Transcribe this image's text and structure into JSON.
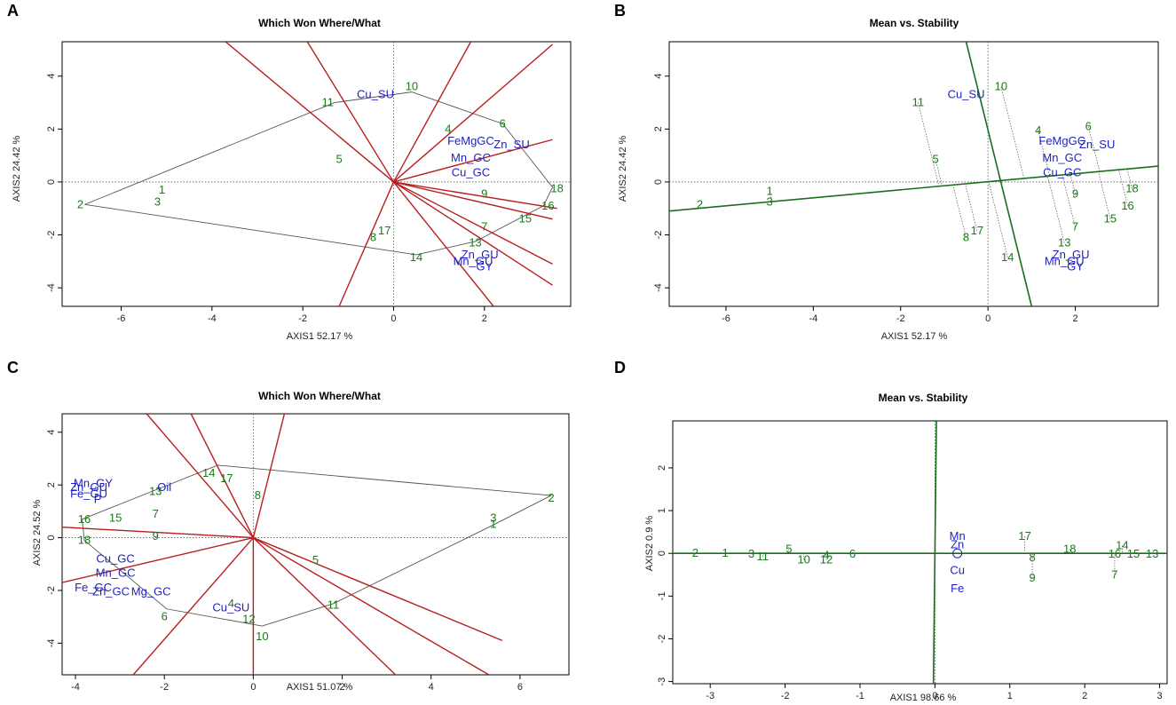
{
  "figure": {
    "panels": [
      "A",
      "B",
      "C",
      "D"
    ]
  },
  "chart_data": [
    {
      "panel": "A",
      "type": "scatter",
      "plot_type": "which-won-where",
      "title": "Which Won Where/What",
      "xlabel": "AXIS1 52.17 %",
      "ylabel": "AXIS2 24.42 %",
      "xlim": [
        -7.3,
        3.9
      ],
      "ylim": [
        -4.7,
        5.3
      ],
      "xticks": [
        -6,
        -4,
        -2,
        0,
        2
      ],
      "yticks": [
        -4,
        -2,
        0,
        2,
        4
      ],
      "genotypes": [
        {
          "label": "1",
          "x": -5.1,
          "y": -0.3
        },
        {
          "label": "2",
          "x": -6.9,
          "y": -0.85
        },
        {
          "label": "3",
          "x": -5.2,
          "y": -0.75
        },
        {
          "label": "4",
          "x": 1.2,
          "y": 2.0
        },
        {
          "label": "5",
          "x": -1.2,
          "y": 0.85
        },
        {
          "label": "6",
          "x": 2.4,
          "y": 2.2
        },
        {
          "label": "7",
          "x": 2.0,
          "y": -1.7
        },
        {
          "label": "8",
          "x": -0.45,
          "y": -2.1
        },
        {
          "label": "9",
          "x": 2.0,
          "y": -0.45
        },
        {
          "label": "10",
          "x": 0.4,
          "y": 3.6
        },
        {
          "label": "11",
          "x": -1.45,
          "y": 3.0
        },
        {
          "label": "13",
          "x": 1.8,
          "y": -2.3
        },
        {
          "label": "14",
          "x": 0.5,
          "y": -2.85
        },
        {
          "label": "15",
          "x": 2.9,
          "y": -1.4
        },
        {
          "label": "16",
          "x": 3.4,
          "y": -0.9
        },
        {
          "label": "17",
          "x": -0.2,
          "y": -1.85
        },
        {
          "label": "18",
          "x": 3.6,
          "y": -0.25
        }
      ],
      "traits": [
        {
          "label": "Cu_SU",
          "x": -0.4,
          "y": 3.3
        },
        {
          "label": "FeMgGC",
          "x": 1.7,
          "y": 1.55
        },
        {
          "label": "Zn_SU",
          "x": 2.6,
          "y": 1.4
        },
        {
          "label": "Mn_GC",
          "x": 1.7,
          "y": 0.9
        },
        {
          "label": "Cu_GC",
          "x": 1.7,
          "y": 0.35
        },
        {
          "label": "Zn_GU",
          "x": 1.9,
          "y": -2.75
        },
        {
          "label": "Mn_GU",
          "x": 1.75,
          "y": -3.0
        },
        {
          "label": "GY",
          "x": 2.0,
          "y": -3.2
        }
      ],
      "hull": [
        [
          "2",
          -6.8,
          -0.85
        ],
        [
          "11",
          -1.3,
          3.0
        ],
        [
          "10",
          0.4,
          3.4
        ],
        [
          "6",
          2.4,
          2.2
        ],
        [
          "18",
          3.5,
          -0.2
        ],
        [
          "16",
          3.3,
          -0.9
        ],
        [
          "13",
          1.8,
          -2.25
        ],
        [
          "14",
          0.5,
          -2.75
        ],
        [
          "2",
          -6.8,
          -0.85
        ]
      ],
      "sectors": [
        [
          -1.9,
          5.3
        ],
        [
          -1.2,
          -4.7
        ],
        [
          2.2,
          -4.7
        ],
        [
          3.5,
          -3.1
        ],
        [
          3.5,
          -3.9
        ],
        [
          3.5,
          -1.4
        ],
        [
          3.6,
          -1.0
        ],
        [
          3.5,
          1.6
        ],
        [
          3.5,
          5.2
        ],
        [
          1.7,
          5.3
        ],
        [
          -3.7,
          5.3
        ]
      ],
      "line_color": "#b81e1e",
      "marker_color": "#1a7a1a",
      "trait_color": "#1f1fbf"
    },
    {
      "panel": "B",
      "type": "scatter",
      "plot_type": "mean-vs-stability",
      "title": "Mean vs. Stability",
      "xlabel": "AXIS1 52.17 %",
      "ylabel": "AXIS2 24.42 %",
      "xlim": [
        -7.3,
        3.9
      ],
      "ylim": [
        -4.7,
        5.3
      ],
      "xticks": [
        -6,
        -4,
        -2,
        0,
        2
      ],
      "yticks": [
        -4,
        -2,
        0,
        2,
        4
      ],
      "genotypes": [
        {
          "label": "1",
          "x": -5.0,
          "y": -0.35
        },
        {
          "label": "2",
          "x": -6.6,
          "y": -0.85
        },
        {
          "label": "3",
          "x": -5.0,
          "y": -0.75
        },
        {
          "label": "4",
          "x": 1.15,
          "y": 1.95
        },
        {
          "label": "5",
          "x": -1.2,
          "y": 0.85
        },
        {
          "label": "6",
          "x": 2.3,
          "y": 2.1
        },
        {
          "label": "7",
          "x": 2.0,
          "y": -1.7
        },
        {
          "label": "8",
          "x": -0.5,
          "y": -2.1
        },
        {
          "label": "9",
          "x": 2.0,
          "y": -0.45
        },
        {
          "label": "10",
          "x": 0.3,
          "y": 3.6
        },
        {
          "label": "11",
          "x": -1.6,
          "y": 3.0
        },
        {
          "label": "13",
          "x": 1.75,
          "y": -2.3
        },
        {
          "label": "14",
          "x": 0.45,
          "y": -2.85
        },
        {
          "label": "15",
          "x": 2.8,
          "y": -1.4
        },
        {
          "label": "16",
          "x": 3.2,
          "y": -0.9
        },
        {
          "label": "17",
          "x": -0.25,
          "y": -1.85
        },
        {
          "label": "18",
          "x": 3.3,
          "y": -0.25
        }
      ],
      "traits": [
        {
          "label": "Cu_SU",
          "x": -0.5,
          "y": 3.3
        },
        {
          "label": "FeMgGC",
          "x": 1.7,
          "y": 1.55
        },
        {
          "label": "Zn_SU",
          "x": 2.5,
          "y": 1.4
        },
        {
          "label": "Mn_GC",
          "x": 1.7,
          "y": 0.9
        },
        {
          "label": "Cu_GC",
          "x": 1.7,
          "y": 0.35
        },
        {
          "label": "Zn_GU",
          "x": 1.9,
          "y": -2.75
        },
        {
          "label": "Mn_GU",
          "x": 1.75,
          "y": -3.0
        },
        {
          "label": "GY",
          "x": 2.0,
          "y": -3.2
        }
      ],
      "aec_abscissa": [
        [
          -7.3,
          -1.1
        ],
        [
          3.9,
          0.6
        ]
      ],
      "aec_ordinate": [
        [
          -0.5,
          5.3
        ],
        [
          1.0,
          -4.7
        ]
      ],
      "line_color": "#1a6e1a",
      "marker_color": "#1a7a1a",
      "trait_color": "#1f1fbf"
    },
    {
      "panel": "C",
      "type": "scatter",
      "plot_type": "which-won-where",
      "title": "Which Won Where/What",
      "xlabel": "AXIS1 51.07 %",
      "ylabel": "AXIS2 24.52 %",
      "xlim": [
        -4.3,
        7.1
      ],
      "ylim": [
        -5.2,
        4.7
      ],
      "xticks": [
        -4,
        -2,
        0,
        2,
        4,
        6
      ],
      "yticks": [
        -4,
        -2,
        0,
        2,
        4
      ],
      "genotypes": [
        {
          "label": "1",
          "x": 5.4,
          "y": 0.5
        },
        {
          "label": "2",
          "x": 6.7,
          "y": 1.5
        },
        {
          "label": "3",
          "x": 5.4,
          "y": 0.75
        },
        {
          "label": "4",
          "x": -0.5,
          "y": -2.5
        },
        {
          "label": "5",
          "x": 1.4,
          "y": -0.85
        },
        {
          "label": "6",
          "x": -2.0,
          "y": -3.0
        },
        {
          "label": "7",
          "x": -2.2,
          "y": 0.9
        },
        {
          "label": "8",
          "x": 0.1,
          "y": 1.6
        },
        {
          "label": "9",
          "x": -2.2,
          "y": 0.05
        },
        {
          "label": "10",
          "x": 0.2,
          "y": -3.75
        },
        {
          "label": "11",
          "x": 1.8,
          "y": -2.55
        },
        {
          "label": "12",
          "x": -0.1,
          "y": -3.1
        },
        {
          "label": "13",
          "x": -2.2,
          "y": 1.75
        },
        {
          "label": "14",
          "x": -1.0,
          "y": 2.45
        },
        {
          "label": "15",
          "x": -3.1,
          "y": 0.75
        },
        {
          "label": "16",
          "x": -3.8,
          "y": 0.7
        },
        {
          "label": "17",
          "x": -0.6,
          "y": 2.25
        },
        {
          "label": "18",
          "x": -3.8,
          "y": -0.1
        }
      ],
      "traits": [
        {
          "label": "Mn_GY",
          "x": -3.6,
          "y": 2.05
        },
        {
          "label": "Zn_GU",
          "x": -3.7,
          "y": 1.9
        },
        {
          "label": "Fe_GU",
          "x": -3.7,
          "y": 1.65
        },
        {
          "label": "Oil",
          "x": -2.0,
          "y": 1.9
        },
        {
          "label": "P",
          "x": -3.5,
          "y": 1.45
        },
        {
          "label": "Cu_GC",
          "x": -3.1,
          "y": -0.8
        },
        {
          "label": "Mn_GC",
          "x": -3.1,
          "y": -1.35
        },
        {
          "label": "Fe_GC",
          "x": -3.6,
          "y": -1.9
        },
        {
          "label": "Zn_GC",
          "x": -3.2,
          "y": -2.05
        },
        {
          "label": "Mg_GC",
          "x": -2.3,
          "y": -2.05
        },
        {
          "label": "Cu_SU",
          "x": -0.5,
          "y": -2.65
        }
      ],
      "hull": [
        [
          "16",
          -3.85,
          0.7
        ],
        [
          "14",
          -0.8,
          2.75
        ],
        [
          "2",
          6.7,
          1.6
        ],
        [
          "1",
          5.3,
          0.4
        ],
        [
          "11",
          1.8,
          -2.5
        ],
        [
          "10",
          0.2,
          -3.35
        ],
        [
          "6",
          -1.95,
          -2.7
        ],
        [
          "18",
          -3.8,
          -0.1
        ],
        [
          "16",
          -3.85,
          0.7
        ]
      ],
      "sectors": [
        [
          -2.4,
          4.7
        ],
        [
          -1.4,
          4.7
        ],
        [
          0.7,
          4.7
        ],
        [
          -4.3,
          0.4
        ],
        [
          -4.3,
          -1.7
        ],
        [
          -2.7,
          -5.2
        ],
        [
          0.0,
          -5.2
        ],
        [
          3.2,
          -5.2
        ],
        [
          5.3,
          -5.2
        ],
        [
          5.6,
          -3.9
        ]
      ],
      "line_color": "#b81e1e",
      "marker_color": "#1a7a1a",
      "trait_color": "#1f1fbf"
    },
    {
      "panel": "D",
      "type": "scatter",
      "plot_type": "mean-vs-stability",
      "title": "Mean vs. Stability",
      "xlabel": "AXIS1 98.66 %",
      "ylabel": "AXIS2 0.9 %",
      "xlim": [
        -3.5,
        3.1
      ],
      "ylim": [
        -3.05,
        3.1
      ],
      "xticks": [
        -3,
        -2,
        -1,
        0,
        1,
        2,
        3
      ],
      "yticks": [
        -3,
        -2,
        -1,
        0,
        1,
        2
      ],
      "genotypes": [
        {
          "label": "1",
          "x": -2.8,
          "y": 0.0
        },
        {
          "label": "2",
          "x": -3.2,
          "y": 0.0
        },
        {
          "label": "3",
          "x": -2.45,
          "y": -0.02
        },
        {
          "label": "4",
          "x": -1.45,
          "y": -0.05
        },
        {
          "label": "5",
          "x": -1.95,
          "y": 0.1
        },
        {
          "label": "6",
          "x": -1.1,
          "y": -0.02
        },
        {
          "label": "7",
          "x": 2.4,
          "y": -0.5
        },
        {
          "label": "8",
          "x": 1.3,
          "y": -0.1
        },
        {
          "label": "9",
          "x": 1.3,
          "y": -0.58
        },
        {
          "label": "10",
          "x": -1.75,
          "y": -0.15
        },
        {
          "label": "11",
          "x": -2.3,
          "y": -0.08
        },
        {
          "label": "12",
          "x": -1.45,
          "y": -0.15
        },
        {
          "label": "13",
          "x": 2.9,
          "y": -0.02
        },
        {
          "label": "14",
          "x": 2.5,
          "y": 0.18
        },
        {
          "label": "15",
          "x": 2.65,
          "y": -0.02
        },
        {
          "label": "16",
          "x": 2.4,
          "y": -0.02
        },
        {
          "label": "17",
          "x": 1.2,
          "y": 0.4
        },
        {
          "label": "18",
          "x": 1.8,
          "y": 0.1
        }
      ],
      "traits": [
        {
          "label": "Mn",
          "x": 0.3,
          "y": 0.4
        },
        {
          "label": "Zn",
          "x": 0.3,
          "y": 0.2
        },
        {
          "label": "Cu",
          "x": 0.3,
          "y": -0.4
        },
        {
          "label": "Fe",
          "x": 0.3,
          "y": -0.83
        }
      ],
      "aec_abscissa": [
        [
          -3.5,
          0.0
        ],
        [
          3.1,
          0.0
        ]
      ],
      "aec_ordinate": [
        [
          0.02,
          3.1
        ],
        [
          -0.02,
          -3.05
        ]
      ],
      "line_color": "#1a6e1a",
      "marker_color": "#1a7a1a",
      "trait_color": "#1f1fbf"
    }
  ]
}
